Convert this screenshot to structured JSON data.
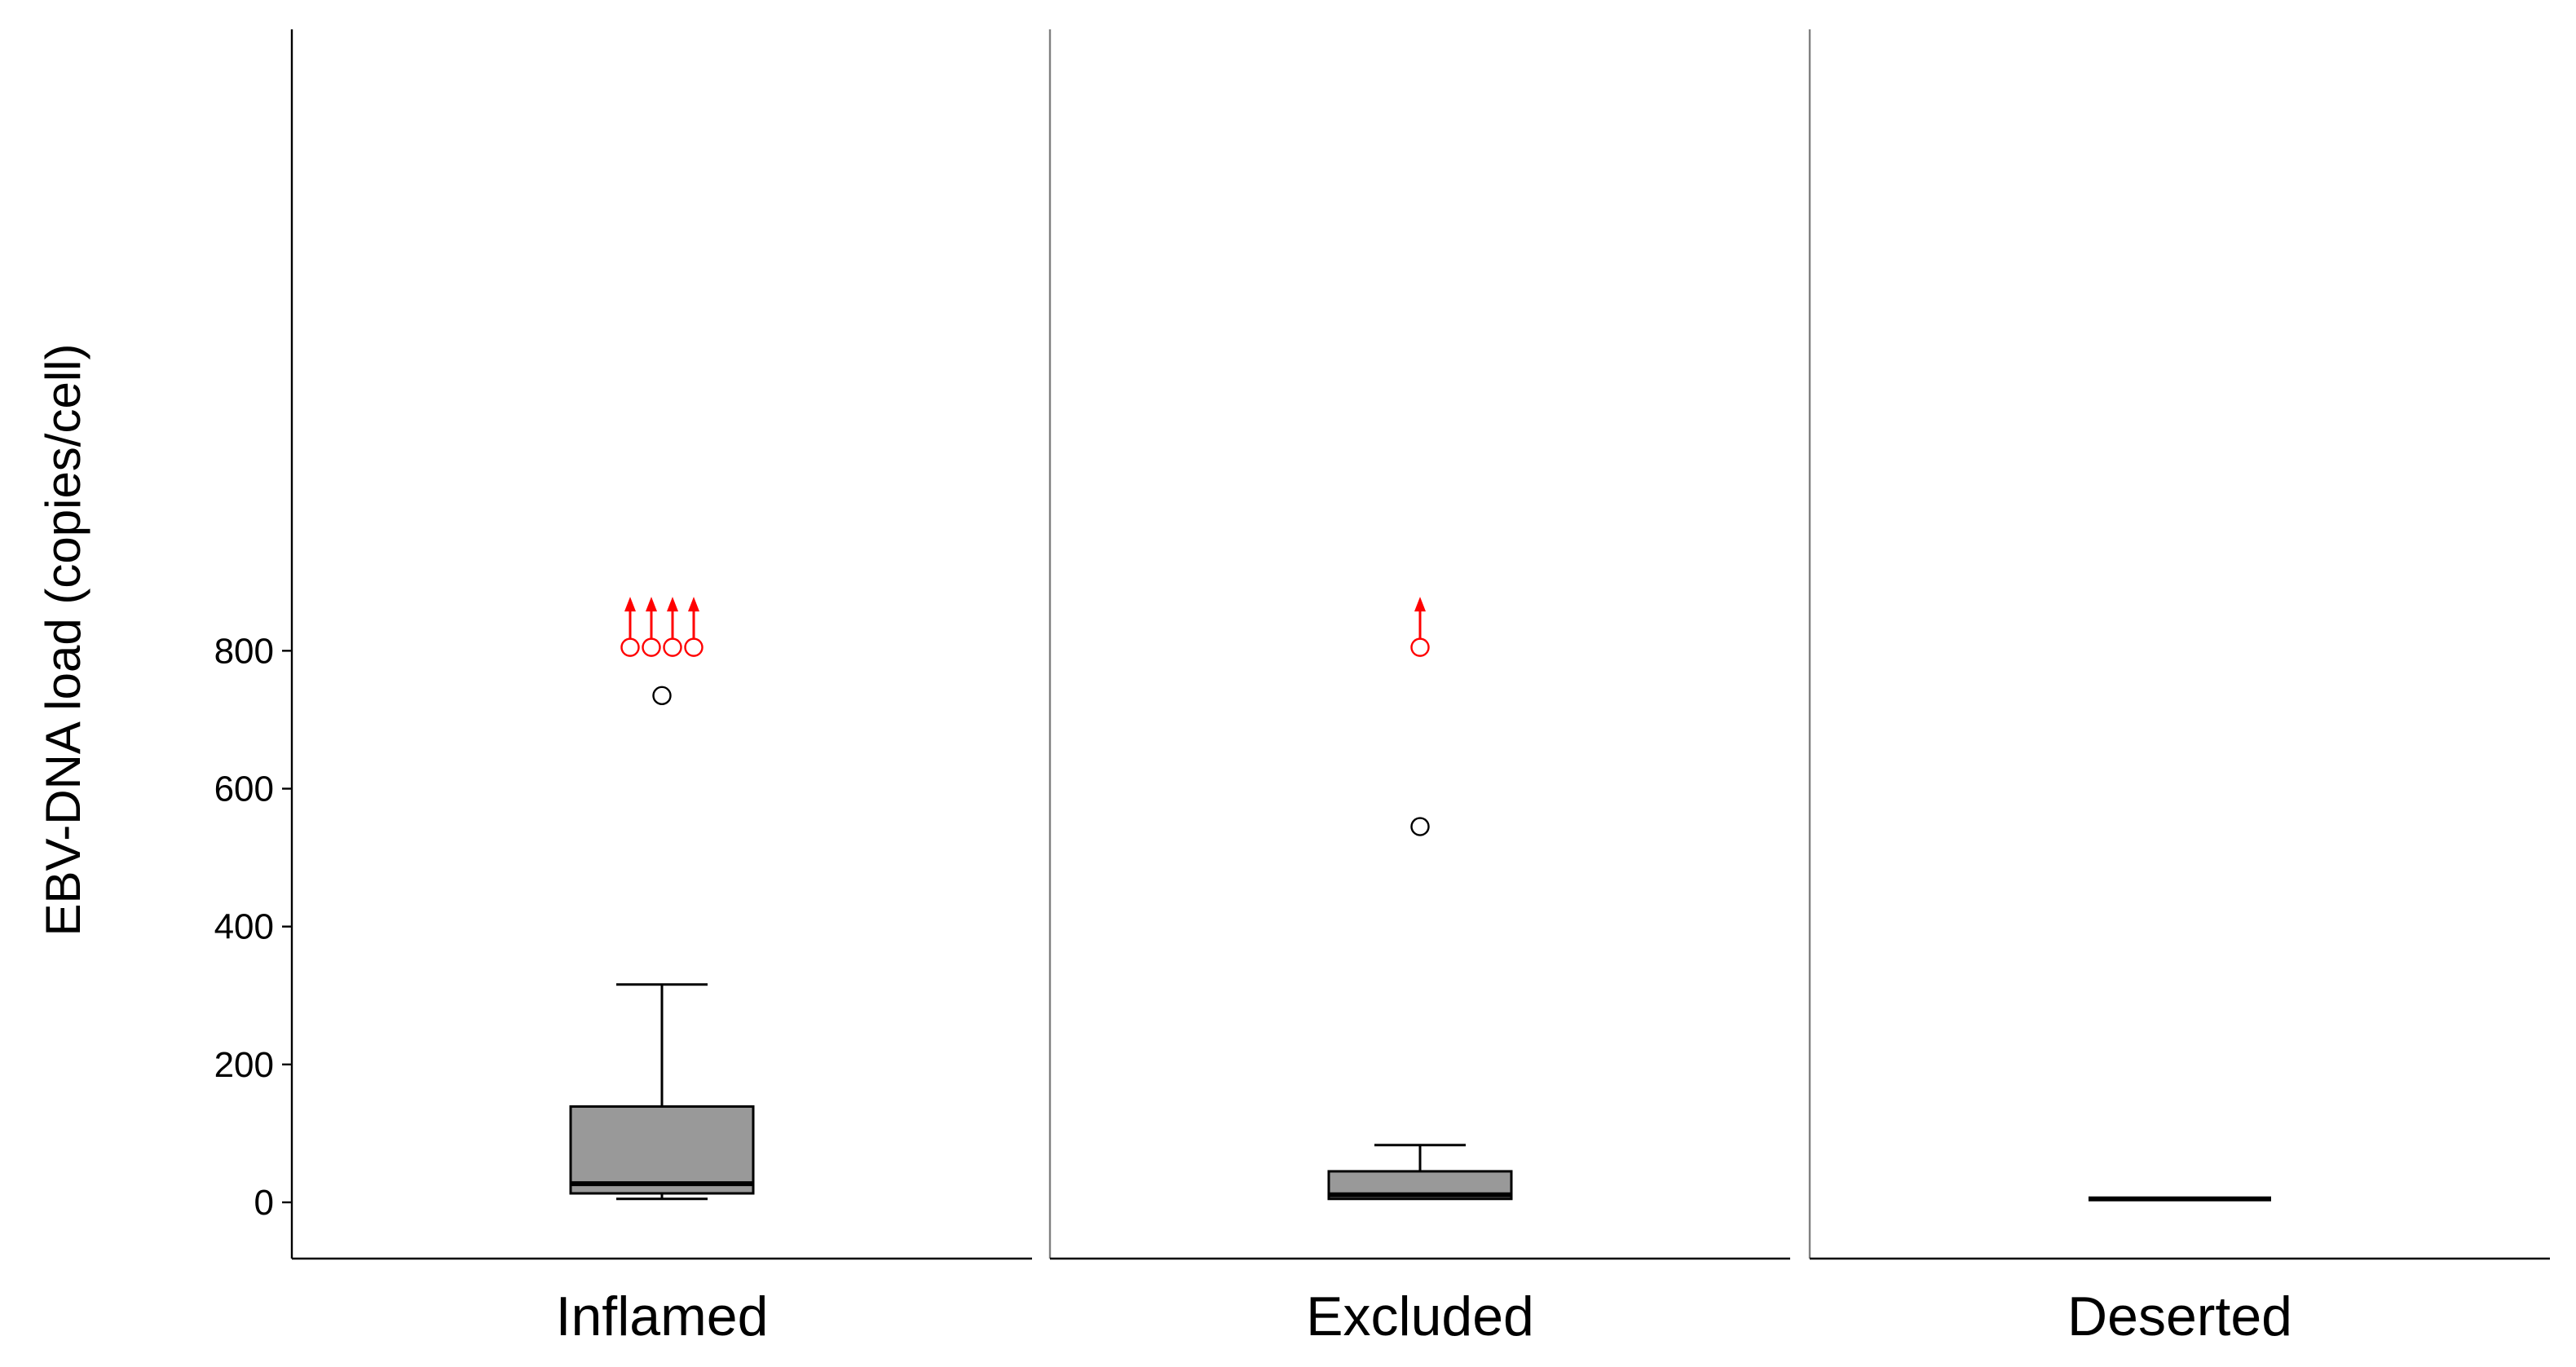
{
  "chart_data": {
    "type": "box",
    "title": "",
    "ylabel": "EBV-DNA load (copies/cell)",
    "xlabel": "",
    "ylim": [
      -40,
      850
    ],
    "yticks": [
      0,
      200,
      400,
      600,
      800
    ],
    "grid": false,
    "legend": "none",
    "colors": {
      "box_fill": "#999999",
      "outline": "#000000",
      "offscale_marker": "#ff0000",
      "panel_divider": "#808080"
    },
    "categories": [
      "Inflamed",
      "Excluded",
      "Deserted"
    ],
    "boxes": [
      {
        "category": "Inflamed",
        "whisker_low": 5,
        "q1": 13,
        "median": 27,
        "q3": 139,
        "whisker_high": 316,
        "outliers": [
          735
        ],
        "offscale_outliers": [
          805,
          805,
          805,
          805
        ]
      },
      {
        "category": "Excluded",
        "whisker_low": 5,
        "q1": 5,
        "median": 11,
        "q3": 45,
        "whisker_high": 83,
        "outliers": [
          545
        ],
        "offscale_outliers": [
          805
        ]
      },
      {
        "category": "Deserted",
        "whisker_low": 5,
        "q1": 5,
        "median": 5,
        "q3": 5,
        "whisker_high": 5,
        "outliers": [],
        "offscale_outliers": []
      }
    ]
  }
}
